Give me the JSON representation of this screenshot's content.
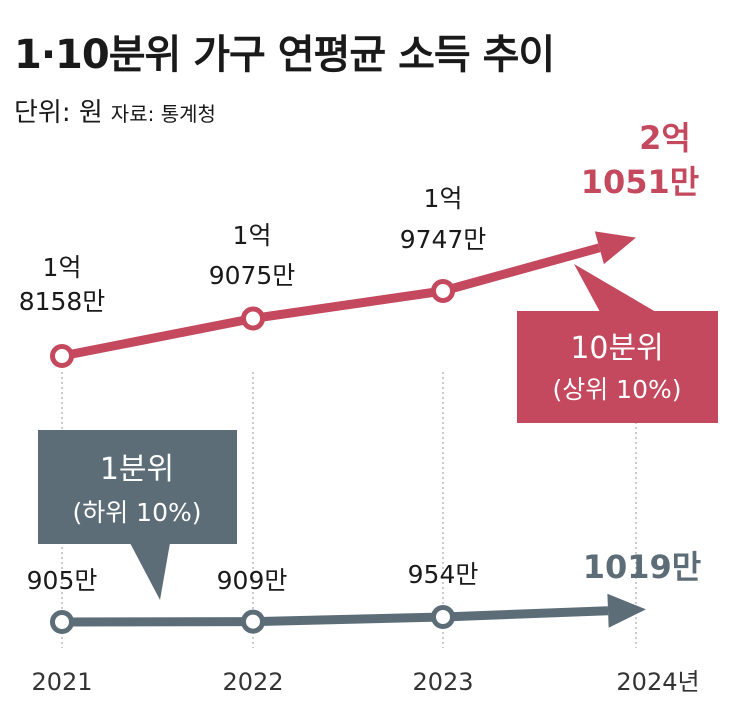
{
  "title": "1·10분위 가구 연평균 소득 추이",
  "unit": "단위: 원",
  "source": "자료: 통계청",
  "colors": {
    "top": "#c4495e",
    "bottom": "#5d6d78",
    "grid": "#999999"
  },
  "chart_data": {
    "type": "line",
    "title": "1·10분위 가구 연평균 소득 추이",
    "ylabel": "단위: 원",
    "x": [
      "2021",
      "2022",
      "2023",
      "2024년"
    ],
    "series": [
      {
        "name": "10분위 (상위 10%)",
        "box_title": "10분위",
        "box_sub": "(상위 10%)",
        "values_manwon": [
          18158,
          19075,
          19747,
          21051
        ],
        "labels": [
          [
            "1억",
            "8158만"
          ],
          [
            "1억",
            "9075만"
          ],
          [
            "1억",
            "9747만"
          ],
          [
            "2억",
            "1051만"
          ]
        ]
      },
      {
        "name": "1분위 (하위 10%)",
        "box_title": "1분위",
        "box_sub": "(하위 10%)",
        "values_manwon": [
          905,
          909,
          954,
          1019
        ],
        "labels": [
          [
            "905만"
          ],
          [
            "909만"
          ],
          [
            "954만"
          ],
          [
            "1019만"
          ]
        ]
      }
    ]
  }
}
